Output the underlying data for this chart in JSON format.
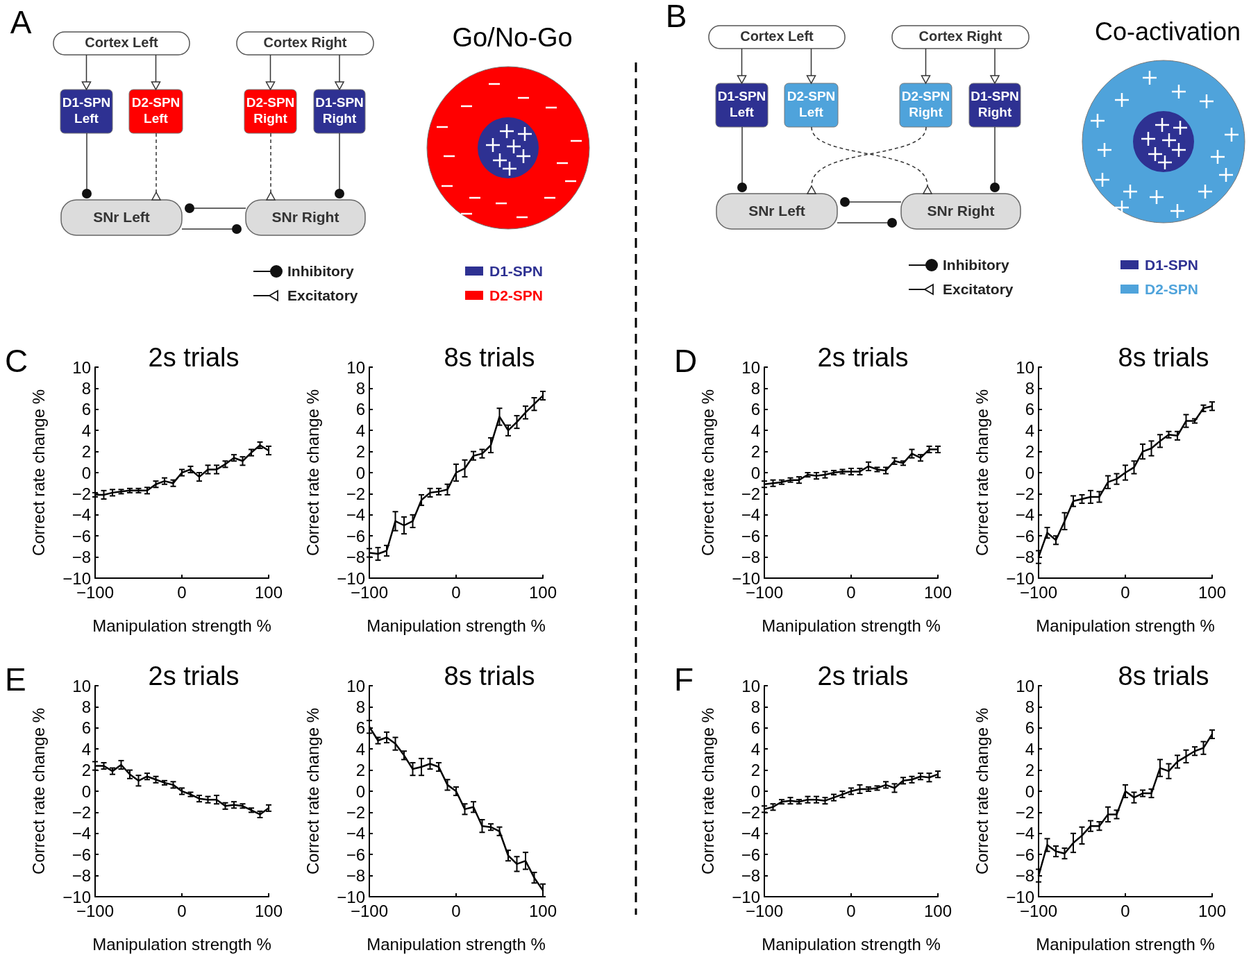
{
  "chart_data": [
    {
      "type": "other",
      "title": "Go/No-Go",
      "annotations": [
        "A",
        "Cortex Left",
        "Cortex Right",
        "D1-SPN Left",
        "D2-SPN Left",
        "D2-SPN Right",
        "D1-SPN Right",
        "SNr Left",
        "SNr Right",
        "Inhibitory",
        "Excitatory",
        "D1-SPN",
        "D2-SPN"
      ],
      "colors": [
        "#2e3192",
        "#ff0000"
      ]
    },
    {
      "type": "other",
      "title": "Co-activation",
      "annotations": [
        "B",
        "Cortex Left",
        "Cortex Right",
        "D1-SPN Left",
        "D2-SPN Left",
        "D2-SPN Right",
        "D1-SPN Right",
        "SNr Left",
        "SNr Right",
        "Inhibitory",
        "Excitatory",
        "D1-SPN",
        "D2-SPN"
      ],
      "colors": [
        "#2e3192",
        "#4fa3db"
      ]
    },
    {
      "type": "line",
      "title": "2s trials",
      "xlabel": "Manipulation strength %",
      "ylabel": "Correct rate change %",
      "annotations": [
        "C"
      ],
      "x": [
        -100,
        -90,
        -80,
        -70,
        -60,
        -50,
        -40,
        -30,
        -20,
        -10,
        0,
        10,
        20,
        30,
        40,
        50,
        60,
        70,
        80,
        90,
        100
      ],
      "xlim": [
        -100,
        100
      ],
      "xticks": [
        -100,
        0,
        100
      ],
      "ylim": [
        -10,
        10
      ],
      "yticks": [
        -10,
        -8,
        -6,
        -4,
        -2,
        0,
        2,
        4,
        6,
        8,
        10
      ],
      "marker": "none",
      "series": [
        {
          "color": "#000000",
          "values": [
            -2.1,
            -2.1,
            -1.9,
            -1.8,
            -1.7,
            -1.7,
            -1.7,
            -1.1,
            -0.8,
            -1.0,
            0,
            0.3,
            -0.4,
            0.3,
            0.3,
            0.8,
            1.4,
            1.1,
            1.9,
            2.6,
            2.1
          ],
          "errors": [
            0.2,
            0.4,
            0.3,
            0.2,
            0.2,
            0.2,
            0.3,
            0.3,
            0.3,
            0.3,
            0.3,
            0.3,
            0.4,
            0.4,
            0.4,
            0.3,
            0.3,
            0.4,
            0.3,
            0.3,
            0.4
          ]
        }
      ]
    },
    {
      "type": "line",
      "title": "8s trials",
      "xlabel": "Manipulation strength %",
      "ylabel": "Correct rate change %",
      "x": [
        -100,
        -90,
        -80,
        -70,
        -60,
        -50,
        -40,
        -30,
        -20,
        -10,
        0,
        10,
        20,
        30,
        40,
        50,
        60,
        70,
        80,
        90,
        100
      ],
      "xlim": [
        -100,
        100
      ],
      "xticks": [
        -100,
        0,
        100
      ],
      "ylim": [
        -10,
        10
      ],
      "yticks": [
        -10,
        -8,
        -6,
        -4,
        -2,
        0,
        2,
        4,
        6,
        8,
        10
      ],
      "marker": "none",
      "series": [
        {
          "color": "#000000",
          "values": [
            -7.6,
            -7.7,
            -7.4,
            -4.6,
            -5.0,
            -4.6,
            -2.6,
            -1.9,
            -1.8,
            -1.6,
            0.0,
            0.4,
            1.6,
            1.8,
            2.6,
            5.3,
            4.0,
            4.8,
            5.7,
            6.5,
            7.3
          ],
          "errors": [
            0.4,
            0.6,
            0.5,
            0.9,
            0.8,
            0.6,
            0.5,
            0.4,
            0.3,
            0.5,
            0.8,
            0.8,
            0.4,
            0.4,
            0.7,
            0.8,
            0.5,
            0.6,
            0.6,
            0.6,
            0.4
          ]
        }
      ]
    },
    {
      "type": "line",
      "title": "2s trials",
      "xlabel": "Manipulation strength %",
      "ylabel": "Correct rate change %",
      "annotations": [
        "D"
      ],
      "x": [
        -100,
        -90,
        -80,
        -70,
        -60,
        -50,
        -40,
        -30,
        -20,
        -10,
        0,
        10,
        20,
        30,
        40,
        50,
        60,
        70,
        80,
        90,
        100
      ],
      "xlim": [
        -100,
        100
      ],
      "xticks": [
        -100,
        0,
        100
      ],
      "ylim": [
        -10,
        10
      ],
      "yticks": [
        -10,
        -8,
        -6,
        -4,
        -2,
        0,
        2,
        4,
        6,
        8,
        10
      ],
      "marker": "none",
      "series": [
        {
          "color": "#000000",
          "values": [
            -1.1,
            -1.0,
            -0.9,
            -0.7,
            -0.7,
            -0.2,
            -0.3,
            -0.2,
            0,
            0.1,
            0.1,
            0.1,
            0.6,
            0.3,
            0.2,
            1.1,
            0.9,
            1.8,
            1.4,
            2.2,
            2.2
          ],
          "errors": [
            0.3,
            0.3,
            0.2,
            0.2,
            0.3,
            0.2,
            0.3,
            0.3,
            0.2,
            0.2,
            0.3,
            0.3,
            0.4,
            0.2,
            0.3,
            0.3,
            0.2,
            0.4,
            0.3,
            0.3,
            0.3
          ]
        }
      ]
    },
    {
      "type": "line",
      "title": "8s trials",
      "xlabel": "Manipulation strength %",
      "ylabel": "Correct rate change %",
      "x": [
        -100,
        -90,
        -80,
        -70,
        -60,
        -50,
        -40,
        -30,
        -20,
        -10,
        0,
        10,
        20,
        30,
        40,
        50,
        60,
        70,
        80,
        90,
        100
      ],
      "xlim": [
        -100,
        100
      ],
      "xticks": [
        -100,
        0,
        100
      ],
      "ylim": [
        -10,
        10
      ],
      "yticks": [
        -10,
        -8,
        -6,
        -4,
        -2,
        0,
        2,
        4,
        6,
        8,
        10
      ],
      "marker": "none",
      "series": [
        {
          "color": "#000000",
          "values": [
            -8.0,
            -5.7,
            -6.4,
            -4.6,
            -2.7,
            -2.5,
            -2.3,
            -2.3,
            -0.9,
            -0.6,
            0,
            0.5,
            2.0,
            2.3,
            3.0,
            3.6,
            3.5,
            4.9,
            4.9,
            6.1,
            6.3
          ],
          "errors": [
            0.6,
            0.5,
            0.4,
            0.8,
            0.5,
            0.4,
            0.6,
            0.5,
            0.6,
            0.5,
            0.7,
            0.6,
            0.7,
            0.7,
            0.6,
            0.3,
            0.4,
            0.6,
            0.2,
            0.3,
            0.4
          ]
        }
      ]
    },
    {
      "type": "line",
      "title": "2s trials",
      "xlabel": "Manipulation strength %",
      "ylabel": "Correct rate change %",
      "annotations": [
        "E"
      ],
      "x": [
        -100,
        -90,
        -80,
        -70,
        -60,
        -50,
        -40,
        -30,
        -20,
        -10,
        0,
        10,
        20,
        30,
        40,
        50,
        60,
        70,
        80,
        90,
        100
      ],
      "xlim": [
        -100,
        100
      ],
      "xticks": [
        -100,
        0,
        100
      ],
      "ylim": [
        -10,
        10
      ],
      "yticks": [
        -10,
        -8,
        -6,
        -4,
        -2,
        0,
        2,
        4,
        6,
        8,
        10
      ],
      "marker": "none",
      "series": [
        {
          "color": "#000000",
          "values": [
            2.4,
            2.4,
            1.9,
            2.5,
            1.6,
            1.0,
            1.4,
            1.1,
            0.8,
            0.6,
            0,
            -0.3,
            -0.7,
            -0.8,
            -0.8,
            -1.4,
            -1.3,
            -1.4,
            -1.8,
            -2.2,
            -1.6
          ],
          "errors": [
            0.4,
            0.3,
            0.3,
            0.4,
            0.4,
            0.5,
            0.3,
            0.3,
            0.2,
            0.3,
            0.3,
            0.2,
            0.3,
            0.3,
            0.4,
            0.3,
            0.3,
            0.2,
            0.2,
            0.3,
            0.3
          ]
        }
      ]
    },
    {
      "type": "line",
      "title": "8s trials",
      "xlabel": "Manipulation strength %",
      "ylabel": "Correct rate change %",
      "x": [
        -100,
        -90,
        -80,
        -70,
        -60,
        -50,
        -40,
        -30,
        -20,
        -10,
        0,
        10,
        20,
        30,
        40,
        50,
        60,
        70,
        80,
        90,
        100
      ],
      "xlim": [
        -100,
        100
      ],
      "xticks": [
        -100,
        0,
        100
      ],
      "ylim": [
        -10,
        10
      ],
      "yticks": [
        -10,
        -8,
        -6,
        -4,
        -2,
        0,
        2,
        4,
        6,
        8,
        10
      ],
      "marker": "none",
      "series": [
        {
          "color": "#000000",
          "values": [
            6.1,
            4.8,
            5.1,
            4.5,
            3.4,
            2.1,
            2.3,
            2.6,
            2.3,
            0.6,
            0,
            -1.7,
            -1.5,
            -3.3,
            -3.4,
            -3.8,
            -6.1,
            -6.9,
            -6.6,
            -8.2,
            -9.4
          ],
          "errors": [
            0.6,
            0.3,
            0.5,
            0.6,
            0.4,
            0.6,
            0.8,
            0.5,
            0.4,
            0.5,
            0.4,
            0.5,
            0.5,
            0.6,
            0.3,
            0.4,
            0.5,
            0.7,
            0.8,
            0.5,
            0.6
          ]
        }
      ]
    },
    {
      "type": "line",
      "title": "2s trials",
      "xlabel": "Manipulation strength %",
      "ylabel": "Correct rate change %",
      "annotations": [
        "F"
      ],
      "x": [
        -100,
        -90,
        -80,
        -70,
        -60,
        -50,
        -40,
        -30,
        -20,
        -10,
        0,
        10,
        20,
        30,
        40,
        50,
        60,
        70,
        80,
        90,
        100
      ],
      "xlim": [
        -100,
        100
      ],
      "xticks": [
        -100,
        0,
        100
      ],
      "ylim": [
        -10,
        10
      ],
      "yticks": [
        -10,
        -8,
        -6,
        -4,
        -2,
        0,
        2,
        4,
        6,
        8,
        10
      ],
      "marker": "none",
      "series": [
        {
          "color": "#000000",
          "values": [
            -1.7,
            -1.5,
            -1.0,
            -0.9,
            -1.0,
            -0.8,
            -0.8,
            -0.9,
            -0.6,
            -0.3,
            0,
            0.2,
            0.2,
            0.3,
            0.6,
            0.3,
            1.0,
            1.1,
            1.4,
            1.3,
            1.6
          ],
          "errors": [
            0.3,
            0.3,
            0.2,
            0.3,
            0.2,
            0.3,
            0.3,
            0.3,
            0.3,
            0.3,
            0.3,
            0.4,
            0.2,
            0.2,
            0.3,
            0.4,
            0.3,
            0.3,
            0.3,
            0.4,
            0.3
          ]
        }
      ]
    },
    {
      "type": "line",
      "title": "8s trials",
      "xlabel": "Manipulation strength %",
      "ylabel": "Correct rate change %",
      "x": [
        -100,
        -90,
        -80,
        -70,
        -60,
        -50,
        -40,
        -30,
        -20,
        -10,
        0,
        10,
        20,
        30,
        40,
        50,
        60,
        70,
        80,
        90,
        100
      ],
      "xlim": [
        -100,
        100
      ],
      "xticks": [
        -100,
        0,
        100
      ],
      "ylim": [
        -10,
        10
      ],
      "yticks": [
        -10,
        -8,
        -6,
        -4,
        -2,
        0,
        2,
        4,
        6,
        8,
        10
      ],
      "marker": "none",
      "series": [
        {
          "color": "#000000",
          "values": [
            -8.0,
            -5.1,
            -5.7,
            -5.9,
            -4.9,
            -4.2,
            -3.3,
            -3.3,
            -2.2,
            -2.2,
            0,
            -0.6,
            -0.2,
            -0.2,
            2.2,
            1.9,
            2.8,
            3.3,
            3.8,
            4.1,
            5.4
          ],
          "errors": [
            0.6,
            0.6,
            0.5,
            0.5,
            0.9,
            0.8,
            0.5,
            0.4,
            0.7,
            0.4,
            0.6,
            0.5,
            0.3,
            0.4,
            0.8,
            0.7,
            0.6,
            0.6,
            0.4,
            0.6,
            0.4
          ]
        }
      ]
    }
  ]
}
